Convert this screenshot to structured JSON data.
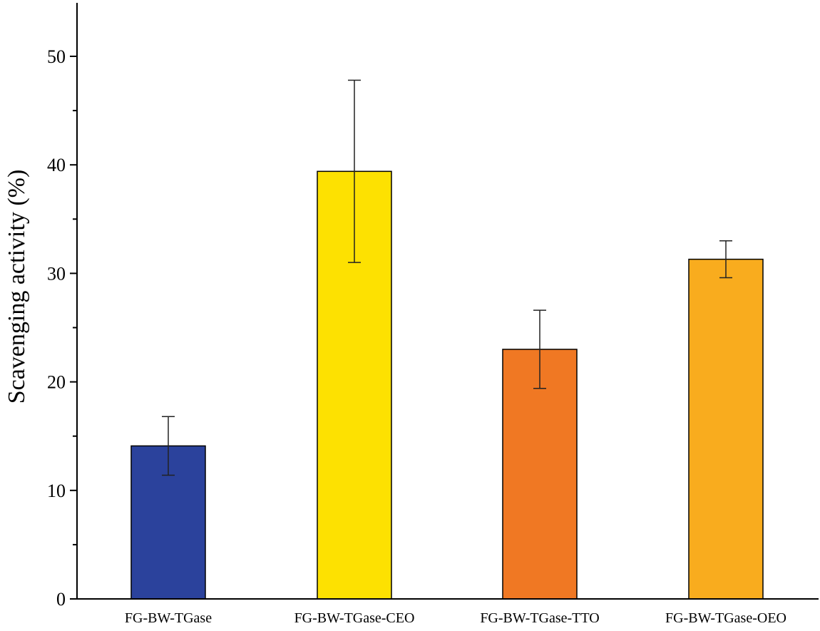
{
  "chart_data": {
    "type": "bar",
    "title": "",
    "xlabel": "",
    "ylabel": "Scavenging activity (%)",
    "ylim": [
      0,
      55
    ],
    "yticks": [
      0,
      10,
      20,
      30,
      40,
      50
    ],
    "categories": [
      "FG-BW-TGase",
      "FG-BW-TGase-CEO",
      "FG-BW-TGase-TTO",
      "FG-BW-TGase-OEO"
    ],
    "values": [
      14.1,
      39.4,
      23.0,
      31.3
    ],
    "errors": [
      2.7,
      8.4,
      3.6,
      1.7
    ],
    "colors": [
      "#2b429c",
      "#fde101",
      "#f07823",
      "#f9ac1e"
    ],
    "grid": false,
    "legend": "none"
  }
}
